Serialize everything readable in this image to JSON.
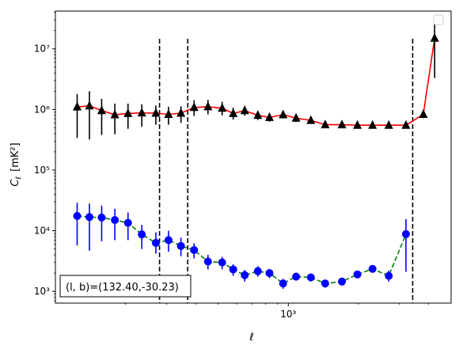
{
  "chart_data": {
    "type": "line",
    "title": "",
    "xlabel": "ℓ",
    "ylabel_main": "C",
    "ylabel_sub": "ℓ",
    "ylabel_unit": "[mK²]",
    "xscale": "log",
    "yscale": "log",
    "xlim": [
      100,
      5000
    ],
    "ylim": [
      640,
      42000000
    ],
    "x_ticks": [
      {
        "value": 1000,
        "label": "10³"
      }
    ],
    "y_ticks": [
      {
        "value": 1000,
        "label": "10³"
      },
      {
        "value": 10000,
        "label": "10⁴"
      },
      {
        "value": 100000,
        "label": "10⁵"
      },
      {
        "value": 1000000,
        "label": "10⁶"
      },
      {
        "value": 10000000,
        "label": "10⁷"
      }
    ],
    "annotation": "(l, b)=(132.40,-30.23)",
    "legend": "top-right, empty",
    "vlines": [
      280,
      370,
      3420
    ],
    "series": [
      {
        "marker": "triangle",
        "marker_color": "#000000",
        "line_color": "#ff0000",
        "line_style": "solid",
        "points": [
          {
            "x": 124,
            "y": 1100000,
            "lo": 340000,
            "hi": 1800000
          },
          {
            "x": 140,
            "y": 1150000,
            "lo": 320000,
            "hi": 2000000
          },
          {
            "x": 158,
            "y": 960000,
            "lo": 380000,
            "hi": 1500000
          },
          {
            "x": 180,
            "y": 820000,
            "lo": 390000,
            "hi": 1250000
          },
          {
            "x": 205,
            "y": 860000,
            "lo": 480000,
            "hi": 1250000
          },
          {
            "x": 235,
            "y": 880000,
            "lo": 520000,
            "hi": 1220000
          },
          {
            "x": 270,
            "y": 870000,
            "lo": 560000,
            "hi": 1160000
          },
          {
            "x": 306,
            "y": 830000,
            "lo": 560000,
            "hi": 1110000
          },
          {
            "x": 346,
            "y": 870000,
            "lo": 600000,
            "hi": 1130000
          },
          {
            "x": 394,
            "y": 1080000,
            "lo": 780000,
            "hi": 1420000
          },
          {
            "x": 452,
            "y": 1110000,
            "lo": 830000,
            "hi": 1440000
          },
          {
            "x": 520,
            "y": 1050000,
            "lo": 800000,
            "hi": 1340000
          },
          {
            "x": 580,
            "y": 860000,
            "lo": 680000,
            "hi": 1070000
          },
          {
            "x": 650,
            "y": 960000,
            "lo": 790000,
            "hi": 1150000
          },
          {
            "x": 740,
            "y": 800000,
            "lo": 670000,
            "hi": 940000
          },
          {
            "x": 830,
            "y": 740000,
            "lo": 630000,
            "hi": 860000
          },
          {
            "x": 950,
            "y": 820000,
            "lo": 710000,
            "hi": 940000
          },
          {
            "x": 1080,
            "y": 720000,
            "lo": 620000,
            "hi": 820000
          },
          {
            "x": 1250,
            "y": 660000,
            "lo": 590000,
            "hi": 740000
          },
          {
            "x": 1440,
            "y": 560000,
            "lo": 500000,
            "hi": 620000
          },
          {
            "x": 1700,
            "y": 560000,
            "lo": 510000,
            "hi": 610000
          },
          {
            "x": 1980,
            "y": 550000,
            "lo": 500000,
            "hi": 600000
          },
          {
            "x": 2300,
            "y": 550000,
            "lo": 500000,
            "hi": 600000
          },
          {
            "x": 2700,
            "y": 550000,
            "lo": 500000,
            "hi": 600000
          },
          {
            "x": 3200,
            "y": 550000,
            "lo": 500000,
            "hi": 600000
          },
          {
            "x": 3800,
            "y": 830000,
            "lo": 720000,
            "hi": 950000
          },
          {
            "x": 4250,
            "y": 15000000,
            "lo": 3300000,
            "hi": 26000000
          }
        ]
      },
      {
        "marker": "circle",
        "marker_color": "#0000ff",
        "line_color": "#008000",
        "line_style": "dashed",
        "points": [
          {
            "x": 124,
            "y": 17500,
            "lo": 5700,
            "hi": 29000
          },
          {
            "x": 140,
            "y": 16800,
            "lo": 4700,
            "hi": 28000
          },
          {
            "x": 158,
            "y": 16500,
            "lo": 6700,
            "hi": 26000
          },
          {
            "x": 180,
            "y": 15000,
            "lo": 7000,
            "hi": 23000
          },
          {
            "x": 205,
            "y": 13500,
            "lo": 7000,
            "hi": 20000
          },
          {
            "x": 235,
            "y": 8700,
            "lo": 5000,
            "hi": 12500
          },
          {
            "x": 270,
            "y": 6300,
            "lo": 4200,
            "hi": 9400
          },
          {
            "x": 306,
            "y": 7000,
            "lo": 4500,
            "hi": 10000
          },
          {
            "x": 346,
            "y": 5600,
            "lo": 3800,
            "hi": 7700
          },
          {
            "x": 394,
            "y": 4800,
            "lo": 3500,
            "hi": 6200
          },
          {
            "x": 452,
            "y": 3100,
            "lo": 2300,
            "hi": 4000
          },
          {
            "x": 520,
            "y": 3000,
            "lo": 2300,
            "hi": 3700
          },
          {
            "x": 580,
            "y": 2300,
            "lo": 1800,
            "hi": 2800
          },
          {
            "x": 650,
            "y": 1850,
            "lo": 1450,
            "hi": 2250
          },
          {
            "x": 740,
            "y": 2150,
            "lo": 1750,
            "hi": 2600
          },
          {
            "x": 830,
            "y": 2000,
            "lo": 1650,
            "hi": 2350
          },
          {
            "x": 950,
            "y": 1350,
            "lo": 1100,
            "hi": 1600
          },
          {
            "x": 1080,
            "y": 1750,
            "lo": 1500,
            "hi": 2000
          },
          {
            "x": 1250,
            "y": 1700,
            "lo": 1450,
            "hi": 1950
          },
          {
            "x": 1440,
            "y": 1350,
            "lo": 1150,
            "hi": 1550
          },
          {
            "x": 1700,
            "y": 1450,
            "lo": 1250,
            "hi": 1650
          },
          {
            "x": 1980,
            "y": 1900,
            "lo": 1650,
            "hi": 2150
          },
          {
            "x": 2300,
            "y": 2350,
            "lo": 2050,
            "hi": 2650
          },
          {
            "x": 2700,
            "y": 1800,
            "lo": 1450,
            "hi": 2200
          },
          {
            "x": 3200,
            "y": 8800,
            "lo": 2100,
            "hi": 15500
          }
        ]
      }
    ]
  }
}
